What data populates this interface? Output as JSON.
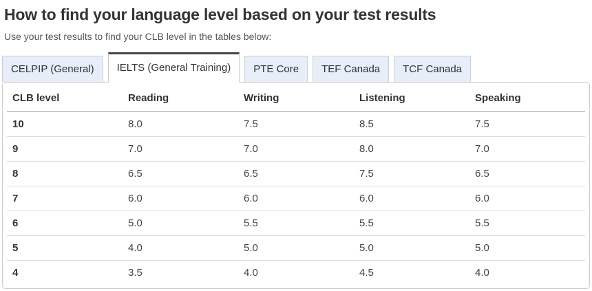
{
  "page": {
    "title": "How to find your language level based on your test results",
    "subtitle": "Use your test results to find your CLB level in the tables below:"
  },
  "tabs": [
    {
      "label": "CELPIP (General)",
      "active": false
    },
    {
      "label": "IELTS (General Training)",
      "active": true
    },
    {
      "label": "PTE Core",
      "active": false
    },
    {
      "label": "TEF Canada",
      "active": false
    },
    {
      "label": "TCF Canada",
      "active": false
    }
  ],
  "table": {
    "columns": [
      "CLB level",
      "Reading",
      "Writing",
      "Listening",
      "Speaking"
    ],
    "rows": [
      [
        "10",
        "8.0",
        "7.5",
        "8.5",
        "7.5"
      ],
      [
        "9",
        "7.0",
        "7.0",
        "8.0",
        "7.0"
      ],
      [
        "8",
        "6.5",
        "6.5",
        "7.5",
        "6.5"
      ],
      [
        "7",
        "6.0",
        "6.0",
        "6.0",
        "6.0"
      ],
      [
        "6",
        "5.0",
        "5.5",
        "5.5",
        "5.5"
      ],
      [
        "5",
        "4.0",
        "5.0",
        "5.0",
        "5.0"
      ],
      [
        "4",
        "3.5",
        "4.0",
        "4.5",
        "4.0"
      ]
    ]
  },
  "colors": {
    "active_tab_top_border": "#444444",
    "inactive_tab_background": "#e8eef8",
    "panel_border": "#cccccc",
    "row_separator": "#dcdcdc",
    "heading_text": "#333333"
  }
}
